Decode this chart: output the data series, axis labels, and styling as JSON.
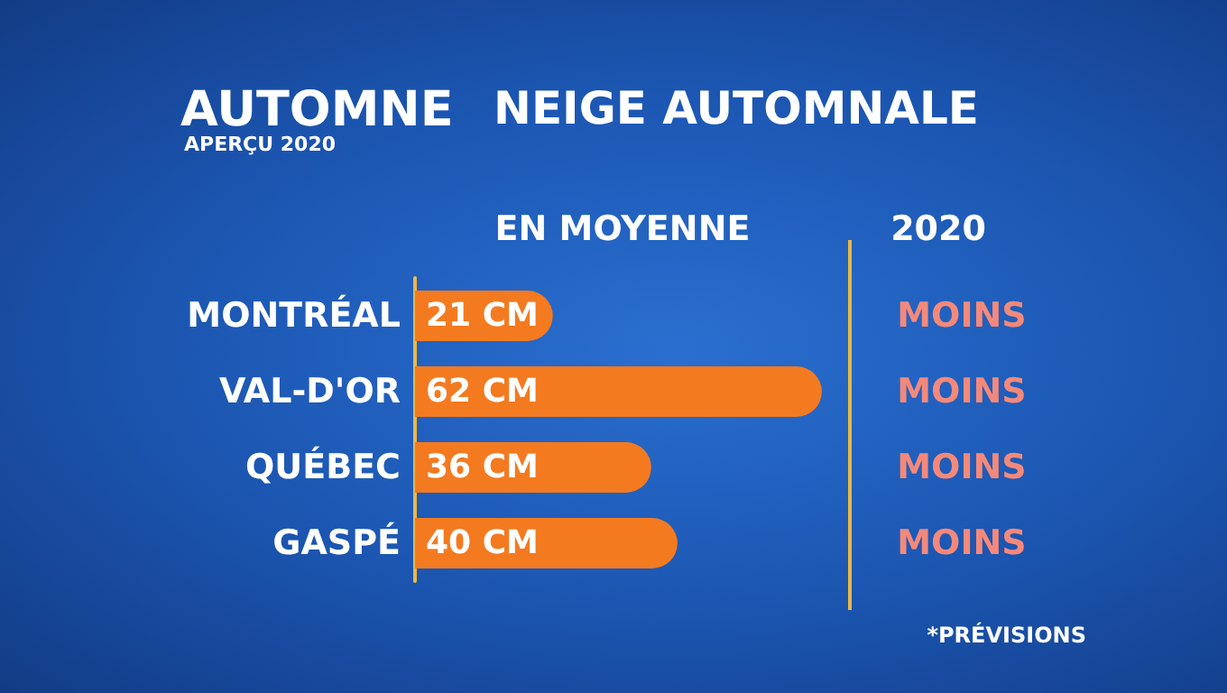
{
  "chart_data": {
    "type": "bar",
    "orientation": "horizontal",
    "title": "NEIGE AUTOMNALE",
    "xlabel": "EN MOYENNE",
    "categories": [
      "MONTRÉAL",
      "VAL-D'OR",
      "QUÉBEC",
      "GASPÉ"
    ],
    "values": [
      21,
      62,
      36,
      40
    ],
    "value_labels": [
      "21 CM",
      "62 CM",
      "36 CM",
      "40 CM"
    ],
    "color": "#f47a20",
    "xlim": [
      0,
      66
    ],
    "tick_labels": "y",
    "annotations": [
      "AUTOMNE",
      "APERÇU 2020",
      "2020",
      "MOINS",
      "MOINS",
      "MOINS",
      "MOINS",
      "*PRÉVISIONS"
    ]
  }
}
